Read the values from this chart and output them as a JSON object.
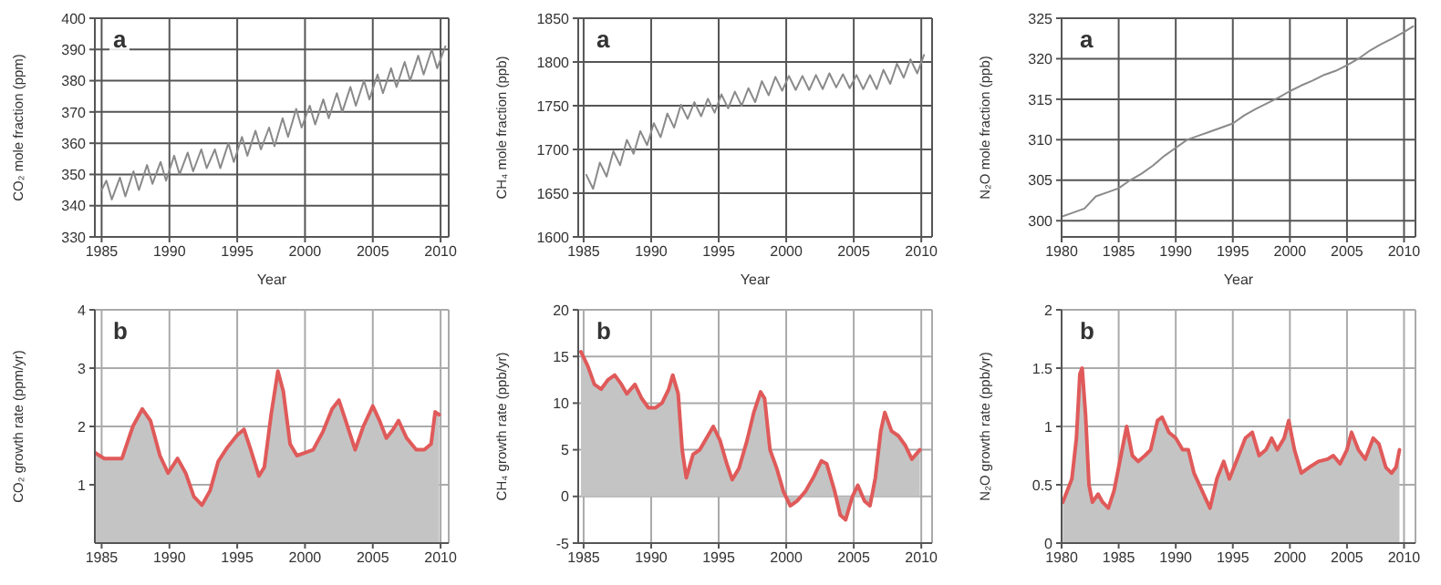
{
  "chart_data": [
    {
      "type": "line",
      "ylabel": "CO₂ mole fraction (ppm)",
      "xlabel": "Year",
      "annotations": [
        "a"
      ],
      "grid": true,
      "xlim": [
        1984.5,
        2010.6
      ],
      "xticks": [
        1985,
        1990,
        1995,
        2000,
        2005,
        2010
      ],
      "ylim": [
        330,
        400
      ],
      "yticks": [
        330,
        340,
        350,
        360,
        370,
        380,
        390,
        400
      ],
      "x": [
        1985.0,
        1985.35,
        1985.75,
        1986.35,
        1986.75,
        1987.35,
        1987.75,
        1988.35,
        1988.75,
        1989.35,
        1989.75,
        1990.35,
        1990.75,
        1991.35,
        1991.75,
        1992.35,
        1992.75,
        1993.35,
        1993.75,
        1994.35,
        1994.75,
        1995.35,
        1995.75,
        1996.35,
        1996.75,
        1997.35,
        1997.75,
        1998.35,
        1998.75,
        1999.35,
        1999.75,
        2000.35,
        2000.75,
        2001.35,
        2001.75,
        2002.35,
        2002.75,
        2003.35,
        2003.75,
        2004.35,
        2004.75,
        2005.35,
        2005.75,
        2006.35,
        2006.75,
        2007.35,
        2007.75,
        2008.35,
        2008.75,
        2009.35,
        2009.75,
        2010.35
      ],
      "series": [
        {
          "color": "#8a8a8a",
          "values": [
            345,
            348,
            342,
            349,
            343,
            351,
            345,
            353,
            347,
            354,
            348,
            356,
            350,
            357,
            351,
            358,
            352,
            358,
            352,
            360,
            354,
            362,
            356,
            364,
            358,
            365,
            359,
            368,
            362,
            371,
            365,
            372,
            366,
            374,
            368,
            376,
            370,
            378,
            372,
            380,
            374,
            382,
            376,
            384,
            378,
            386,
            380,
            388,
            382,
            390,
            384,
            391
          ]
        }
      ]
    },
    {
      "type": "line",
      "ylabel": "CH₄ mole fraction (ppb)",
      "xlabel": "Year",
      "annotations": [
        "a"
      ],
      "grid": true,
      "xlim": [
        1984.6,
        2010.8
      ],
      "xticks": [
        1985,
        1990,
        1995,
        2000,
        2005,
        2010
      ],
      "ylim": [
        1600,
        1850
      ],
      "yticks": [
        1600,
        1650,
        1700,
        1750,
        1800,
        1850
      ],
      "x": [
        1985.2,
        1985.7,
        1986.2,
        1986.7,
        1987.2,
        1987.7,
        1988.2,
        1988.7,
        1989.2,
        1989.7,
        1990.2,
        1990.7,
        1991.2,
        1991.7,
        1992.2,
        1992.7,
        1993.2,
        1993.7,
        1994.2,
        1994.7,
        1995.2,
        1995.7,
        1996.2,
        1996.7,
        1997.2,
        1997.7,
        1998.2,
        1998.7,
        1999.2,
        1999.7,
        2000.2,
        2000.7,
        2001.2,
        2001.7,
        2002.2,
        2002.7,
        2003.2,
        2003.7,
        2004.2,
        2004.7,
        2005.2,
        2005.7,
        2006.2,
        2006.7,
        2007.2,
        2007.7,
        2008.2,
        2008.7,
        2009.2,
        2009.7,
        2010.2
      ],
      "series": [
        {
          "color": "#8a8a8a",
          "values": [
            1671,
            1655,
            1685,
            1669,
            1698,
            1682,
            1711,
            1695,
            1721,
            1705,
            1730,
            1714,
            1741,
            1725,
            1751,
            1735,
            1754,
            1738,
            1758,
            1742,
            1763,
            1747,
            1766,
            1750,
            1770,
            1754,
            1778,
            1762,
            1783,
            1767,
            1784,
            1768,
            1784,
            1768,
            1785,
            1769,
            1787,
            1771,
            1786,
            1770,
            1785,
            1769,
            1785,
            1769,
            1791,
            1775,
            1798,
            1782,
            1803,
            1787,
            1808
          ]
        }
      ]
    },
    {
      "type": "line",
      "ylabel": "N₂O mole fraction (ppb)",
      "xlabel": "Year",
      "annotations": [
        "a"
      ],
      "grid": true,
      "xlim": [
        1980,
        2011
      ],
      "xticks": [
        1980,
        1985,
        1990,
        1995,
        2000,
        2005,
        2010
      ],
      "ylim": [
        298,
        325
      ],
      "yticks": [
        300,
        305,
        310,
        315,
        320,
        325
      ],
      "x": [
        1980,
        1981,
        1982,
        1983,
        1984,
        1985,
        1986,
        1987,
        1988,
        1989,
        1990,
        1991,
        1992,
        1993,
        1994,
        1995,
        1996,
        1997,
        1998,
        1999,
        2000,
        2001,
        2002,
        2003,
        2004,
        2005,
        2006,
        2007,
        2008,
        2009,
        2010,
        2010.8
      ],
      "series": [
        {
          "color": "#8a8a8a",
          "values": [
            300.5,
            301,
            301.5,
            303,
            303.5,
            304,
            305,
            305.8,
            306.8,
            308,
            309,
            310,
            310.5,
            311,
            311.5,
            312,
            313,
            313.8,
            314.5,
            315.2,
            316,
            316.7,
            317.3,
            318,
            318.5,
            319.2,
            320,
            321,
            321.8,
            322.5,
            323.3,
            324
          ]
        }
      ]
    },
    {
      "type": "area",
      "ylabel": "CO₂ growth rate (ppm/yr)",
      "annotations": [
        "b"
      ],
      "grid": true,
      "xlim": [
        1984.5,
        2010.6
      ],
      "xticks": [
        1985,
        1990,
        1995,
        2000,
        2005,
        2010
      ],
      "ylim": [
        0,
        4
      ],
      "yticks": [
        1,
        2,
        3,
        4
      ],
      "x": [
        1984.5,
        1985.2,
        1986.5,
        1987.3,
        1988,
        1988.6,
        1989.3,
        1989.9,
        1990.6,
        1991.2,
        1991.8,
        1992.4,
        1993,
        1993.6,
        1994.3,
        1995,
        1995.5,
        1996,
        1996.6,
        1997,
        1997.5,
        1998,
        1998.4,
        1998.9,
        1999.4,
        2000,
        2000.6,
        2001.3,
        2002,
        2002.5,
        2003,
        2003.7,
        2004.3,
        2005,
        2005.5,
        2006,
        2006.5,
        2006.9,
        2007.5,
        2008.2,
        2008.8,
        2009.3,
        2009.6,
        2009.9
      ],
      "series": [
        {
          "color": "#e05a5a",
          "values": [
            1.55,
            1.45,
            1.45,
            2.0,
            2.3,
            2.1,
            1.5,
            1.2,
            1.45,
            1.2,
            0.8,
            0.65,
            0.9,
            1.4,
            1.65,
            1.85,
            1.95,
            1.6,
            1.15,
            1.3,
            2.2,
            2.95,
            2.6,
            1.7,
            1.5,
            1.55,
            1.6,
            1.9,
            2.3,
            2.45,
            2.1,
            1.6,
            2.0,
            2.35,
            2.1,
            1.8,
            1.95,
            2.1,
            1.8,
            1.6,
            1.6,
            1.7,
            2.25,
            2.2
          ]
        }
      ]
    },
    {
      "type": "area",
      "ylabel": "CH₄ growth rate (ppb/yr)",
      "annotations": [
        "b"
      ],
      "grid": true,
      "xlim": [
        1984.6,
        2010.8
      ],
      "xticks": [
        1985,
        1990,
        1995,
        2000,
        2005,
        2010
      ],
      "ylim": [
        -5,
        20
      ],
      "yticks": [
        -5,
        0,
        5,
        10,
        15,
        20
      ],
      "x": [
        1984.8,
        1985.3,
        1985.8,
        1986.3,
        1986.8,
        1987.3,
        1987.8,
        1988.2,
        1988.8,
        1989.3,
        1989.8,
        1990.3,
        1990.8,
        1991.3,
        1991.6,
        1992,
        1992.3,
        1992.6,
        1993.1,
        1993.6,
        1994.2,
        1994.6,
        1995.1,
        1995.6,
        1996,
        1996.5,
        1997.1,
        1997.6,
        1998.1,
        1998.4,
        1998.8,
        1999.3,
        1999.8,
        2000.3,
        2000.8,
        2001.4,
        2002,
        2002.6,
        2003,
        2003.6,
        2004,
        2004.4,
        2004.9,
        2005.3,
        2005.8,
        2006.2,
        2006.6,
        2007,
        2007.3,
        2007.8,
        2008.3,
        2008.8,
        2009.3,
        2009.9
      ],
      "series": [
        {
          "color": "#e05a5a",
          "values": [
            15.5,
            14,
            12,
            11.5,
            12.5,
            13,
            12,
            11,
            12,
            10.5,
            9.5,
            9.5,
            10,
            11.5,
            13,
            11,
            5,
            2,
            4.5,
            5,
            6.5,
            7.5,
            6,
            3.5,
            1.8,
            3,
            6,
            9,
            11.2,
            10.5,
            5,
            3,
            0.5,
            -1,
            -0.5,
            0.5,
            2,
            3.8,
            3.5,
            0.5,
            -2,
            -2.5,
            0,
            1.2,
            -0.5,
            -1,
            2,
            7,
            9,
            7,
            6.5,
            5.5,
            4,
            5
          ]
        }
      ]
    },
    {
      "type": "area",
      "ylabel": "N₂O growth rate (ppb/yr)",
      "annotations": [
        "b"
      ],
      "grid": true,
      "xlim": [
        1980,
        2011
      ],
      "xticks": [
        1980,
        1985,
        1990,
        1995,
        2000,
        2005,
        2010
      ],
      "ylim": [
        0,
        2
      ],
      "yticks": [
        0,
        0.5,
        1,
        1.5,
        2
      ],
      "x": [
        1980.1,
        1980.5,
        1980.9,
        1981.3,
        1981.6,
        1981.8,
        1982.1,
        1982.4,
        1982.7,
        1983.2,
        1983.6,
        1984.1,
        1984.6,
        1985.2,
        1985.7,
        1986.2,
        1986.7,
        1987.3,
        1987.8,
        1988.4,
        1988.8,
        1989.4,
        1990,
        1990.6,
        1991.1,
        1991.6,
        1992.3,
        1993,
        1993.6,
        1994.2,
        1994.7,
        1995.3,
        1996.1,
        1996.7,
        1997.3,
        1997.9,
        1998.4,
        1998.9,
        1999.5,
        1999.9,
        2000.4,
        2001,
        2001.7,
        2002.5,
        2003.3,
        2003.8,
        2004.4,
        2005,
        2005.4,
        2006,
        2006.6,
        2007.3,
        2007.8,
        2008.4,
        2008.9,
        2009.3,
        2009.6
      ],
      "series": [
        {
          "color": "#e05a5a",
          "values": [
            0.35,
            0.45,
            0.55,
            0.9,
            1.45,
            1.5,
            1.1,
            0.5,
            0.35,
            0.42,
            0.35,
            0.3,
            0.45,
            0.75,
            1.0,
            0.75,
            0.7,
            0.75,
            0.8,
            1.05,
            1.08,
            0.95,
            0.9,
            0.8,
            0.8,
            0.6,
            0.45,
            0.3,
            0.55,
            0.7,
            0.55,
            0.7,
            0.9,
            0.95,
            0.75,
            0.8,
            0.9,
            0.8,
            0.9,
            1.05,
            0.8,
            0.6,
            0.65,
            0.7,
            0.72,
            0.75,
            0.68,
            0.8,
            0.95,
            0.8,
            0.72,
            0.9,
            0.85,
            0.65,
            0.6,
            0.65,
            0.8
          ]
        }
      ]
    }
  ]
}
